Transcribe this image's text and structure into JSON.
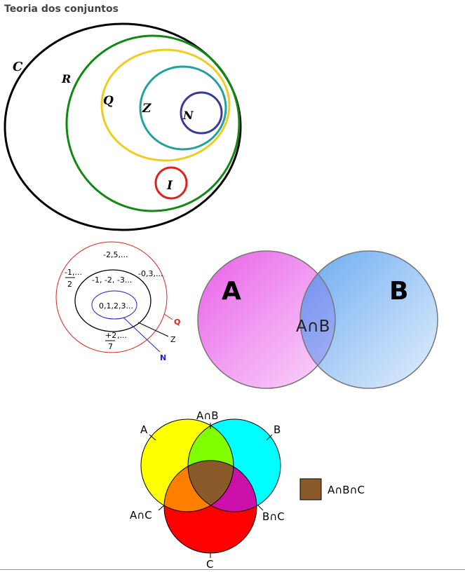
{
  "page": {
    "title": "Teoria dos conjuntos"
  },
  "number_sets": {
    "labels": {
      "complex": "C",
      "real": "R",
      "rational": "Q",
      "integer": "Z",
      "natural": "N",
      "irrational": "I"
    },
    "colors": {
      "complex": "#000000",
      "real": "#118811",
      "rational": "#eecc22",
      "integer": "#22a0a0",
      "natural": "#3a3a9a",
      "irrational": "#dd2222"
    }
  },
  "nested_sets": {
    "outer_top": "-2,5,...",
    "outer_frac_num": "-1,...",
    "outer_frac_den": "2",
    "outer_bottom_num": "+2",
    "outer_bottom_suffix": ",...",
    "outer_bottom_den": "7",
    "middle_text": "-1, -2, -3...",
    "middle_right": "-0,3,...",
    "inner_text": "0,1,2,3...",
    "label_q": "Q",
    "label_z": "Z",
    "label_n": "N",
    "colors": {
      "q": "#dd2222",
      "z": "#000000",
      "n": "#2222cc"
    }
  },
  "two_set_venn": {
    "label_a": "A",
    "label_b": "B",
    "intersection": "A∩B",
    "colors": {
      "a": "#f080f0",
      "b": "#90c0f5",
      "overlap": "#8899ee"
    }
  },
  "three_set_venn": {
    "label_a": "A",
    "label_b": "B",
    "label_c": "C",
    "label_ab": "A∩B",
    "label_ac": "A∩C",
    "label_bc": "B∩C",
    "legend_label": "A∩B∩C",
    "colors": {
      "a": "#ffff00",
      "b": "#00ffff",
      "c": "#ff0000",
      "ab": "#80ff00",
      "ac": "#ff8000",
      "bc": "#cc11aa",
      "abc": "#8b5a2b"
    }
  }
}
